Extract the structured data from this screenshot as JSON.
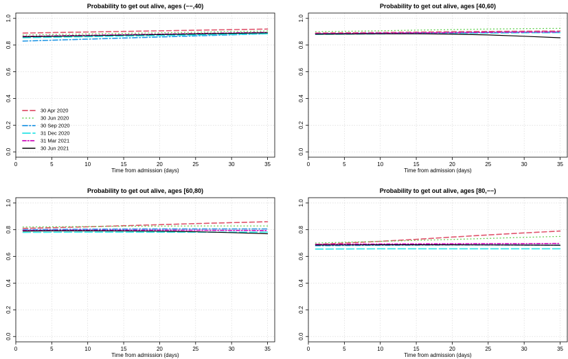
{
  "figure": {
    "legend_panel": 0
  },
  "series_styles": [
    {
      "name": "30 Apr 2020",
      "color": "#df536b",
      "dash": "7,4",
      "width": 1.6
    },
    {
      "name": "30 Jun 2020",
      "color": "#61d04f",
      "dash": "0.8,4",
      "width": 1.4
    },
    {
      "name": "30 Sep 2020",
      "color": "#2297e6",
      "dash": "7,3,1.5,3",
      "width": 1.6
    },
    {
      "name": "31 Dec 2020",
      "color": "#28e2e5",
      "dash": "11,4",
      "width": 1.6
    },
    {
      "name": "31 Mar 2021",
      "color": "#cd0bbc",
      "dash": "5,2.5,1.5,2.5",
      "width": 1.6
    },
    {
      "name": "30 Jun 2021",
      "color": "#000000",
      "dash": "",
      "width": 1.2
    }
  ],
  "chart_data": [
    {
      "type": "line",
      "title": "Probability to get out alive, ages (−−,40)",
      "xlabel": "Time from admission (days)",
      "ylabel": "",
      "xlim": [
        0,
        36
      ],
      "ylim": [
        -0.04,
        1.04
      ],
      "xticks": [
        0,
        5,
        10,
        15,
        20,
        25,
        30,
        35
      ],
      "yticks": [
        0.0,
        0.2,
        0.4,
        0.6,
        0.8,
        1.0
      ],
      "ytick_labels": [
        "0.0",
        "0.2",
        "0.4",
        "0.6",
        "0.8",
        "1.0"
      ],
      "grid": true,
      "legend": "bottom-left",
      "x": [
        1,
        35
      ],
      "series": [
        {
          "name": "30 Apr 2020",
          "values": [
            0.89,
            0.92
          ]
        },
        {
          "name": "30 Jun 2020",
          "values": [
            0.875,
            0.905
          ]
        },
        {
          "name": "30 Sep 2020",
          "values": [
            0.83,
            0.885
          ]
        },
        {
          "name": "31 Dec 2020",
          "values": [
            0.855,
            0.885
          ]
        },
        {
          "name": "31 Mar 2021",
          "values": [
            0.865,
            0.895
          ]
        },
        {
          "name": "30 Jun 2021",
          "values": [
            0.862,
            0.892
          ]
        }
      ]
    },
    {
      "type": "line",
      "title": "Probability to get out alive, ages [40,60)",
      "xlabel": "Time from admission (days)",
      "ylabel": "",
      "xlim": [
        0,
        36
      ],
      "ylim": [
        -0.04,
        1.04
      ],
      "xticks": [
        0,
        5,
        10,
        15,
        20,
        25,
        30,
        35
      ],
      "yticks": [
        0.0,
        0.2,
        0.4,
        0.6,
        0.8,
        1.0
      ],
      "ytick_labels": [
        "0.0",
        "0.2",
        "0.4",
        "0.6",
        "0.8",
        "1.0"
      ],
      "grid": true,
      "legend": "none",
      "x": [
        1,
        5,
        10,
        15,
        20,
        25,
        30,
        35
      ],
      "series": [
        {
          "name": "30 Apr 2020",
          "values": [
            0.89,
            0.892,
            0.894,
            0.897,
            0.9,
            0.902,
            0.904,
            0.905
          ]
        },
        {
          "name": "30 Jun 2020",
          "values": [
            0.9,
            0.903,
            0.907,
            0.912,
            0.916,
            0.92,
            0.923,
            0.925
          ]
        },
        {
          "name": "30 Sep 2020",
          "values": [
            0.885,
            0.887,
            0.889,
            0.891,
            0.893,
            0.895,
            0.897,
            0.898
          ]
        },
        {
          "name": "31 Dec 2020",
          "values": [
            0.88,
            0.882,
            0.884,
            0.886,
            0.888,
            0.89,
            0.892,
            0.893
          ]
        },
        {
          "name": "31 Mar 2021",
          "values": [
            0.885,
            0.887,
            0.889,
            0.891,
            0.893,
            0.895,
            0.897,
            0.898
          ]
        },
        {
          "name": "30 Jun 2021",
          "values": [
            0.882,
            0.883,
            0.884,
            0.884,
            0.882,
            0.876,
            0.866,
            0.855
          ]
        }
      ]
    },
    {
      "type": "line",
      "title": "Probability to get out alive, ages [60,80)",
      "xlabel": "Time from admission (days)",
      "ylabel": "",
      "xlim": [
        0,
        36
      ],
      "ylim": [
        -0.04,
        1.04
      ],
      "xticks": [
        0,
        5,
        10,
        15,
        20,
        25,
        30,
        35
      ],
      "yticks": [
        0.0,
        0.2,
        0.4,
        0.6,
        0.8,
        1.0
      ],
      "ytick_labels": [
        "0.0",
        "0.2",
        "0.4",
        "0.6",
        "0.8",
        "1.0"
      ],
      "grid": true,
      "legend": "none",
      "x": [
        1,
        5,
        10,
        15,
        20,
        25,
        30,
        35
      ],
      "series": [
        {
          "name": "30 Apr 2020",
          "values": [
            0.81,
            0.815,
            0.822,
            0.83,
            0.838,
            0.846,
            0.853,
            0.86
          ]
        },
        {
          "name": "30 Jun 2020",
          "values": [
            0.82,
            0.822,
            0.824,
            0.826,
            0.827,
            0.828,
            0.828,
            0.828
          ]
        },
        {
          "name": "30 Sep 2020",
          "values": [
            0.8,
            0.802,
            0.804,
            0.805,
            0.806,
            0.806,
            0.806,
            0.806
          ]
        },
        {
          "name": "31 Dec 2020",
          "values": [
            0.78,
            0.781,
            0.782,
            0.782,
            0.782,
            0.782,
            0.782,
            0.782
          ]
        },
        {
          "name": "31 Mar 2021",
          "values": [
            0.795,
            0.796,
            0.797,
            0.797,
            0.797,
            0.796,
            0.795,
            0.794
          ]
        },
        {
          "name": "30 Jun 2021",
          "values": [
            0.79,
            0.792,
            0.792,
            0.791,
            0.789,
            0.785,
            0.778,
            0.77
          ]
        }
      ]
    },
    {
      "type": "line",
      "title": "Probability to get out alive, ages [80,−−)",
      "xlabel": "Time from admission (days)",
      "ylabel": "",
      "xlim": [
        0,
        36
      ],
      "ylim": [
        -0.04,
        1.04
      ],
      "xticks": [
        0,
        5,
        10,
        15,
        20,
        25,
        30,
        35
      ],
      "yticks": [
        0.0,
        0.2,
        0.4,
        0.6,
        0.8,
        1.0
      ],
      "ytick_labels": [
        "0.0",
        "0.2",
        "0.4",
        "0.6",
        "0.8",
        "1.0"
      ],
      "grid": true,
      "legend": "none",
      "x": [
        1,
        5,
        10,
        15,
        20,
        25,
        30,
        35
      ],
      "series": [
        {
          "name": "30 Apr 2020",
          "values": [
            0.69,
            0.7,
            0.713,
            0.728,
            0.745,
            0.761,
            0.776,
            0.79
          ]
        },
        {
          "name": "30 Jun 2020",
          "values": [
            0.7,
            0.706,
            0.713,
            0.72,
            0.727,
            0.735,
            0.743,
            0.75
          ]
        },
        {
          "name": "30 Sep 2020",
          "values": [
            0.68,
            0.682,
            0.684,
            0.685,
            0.686,
            0.686,
            0.685,
            0.684
          ]
        },
        {
          "name": "31 Dec 2020",
          "values": [
            0.655,
            0.656,
            0.657,
            0.657,
            0.657,
            0.657,
            0.657,
            0.657
          ]
        },
        {
          "name": "31 Mar 2021",
          "values": [
            0.69,
            0.692,
            0.693,
            0.694,
            0.695,
            0.696,
            0.696,
            0.697
          ]
        },
        {
          "name": "30 Jun 2021",
          "values": [
            0.685,
            0.686,
            0.687,
            0.687,
            0.687,
            0.686,
            0.685,
            0.684
          ]
        }
      ]
    }
  ]
}
